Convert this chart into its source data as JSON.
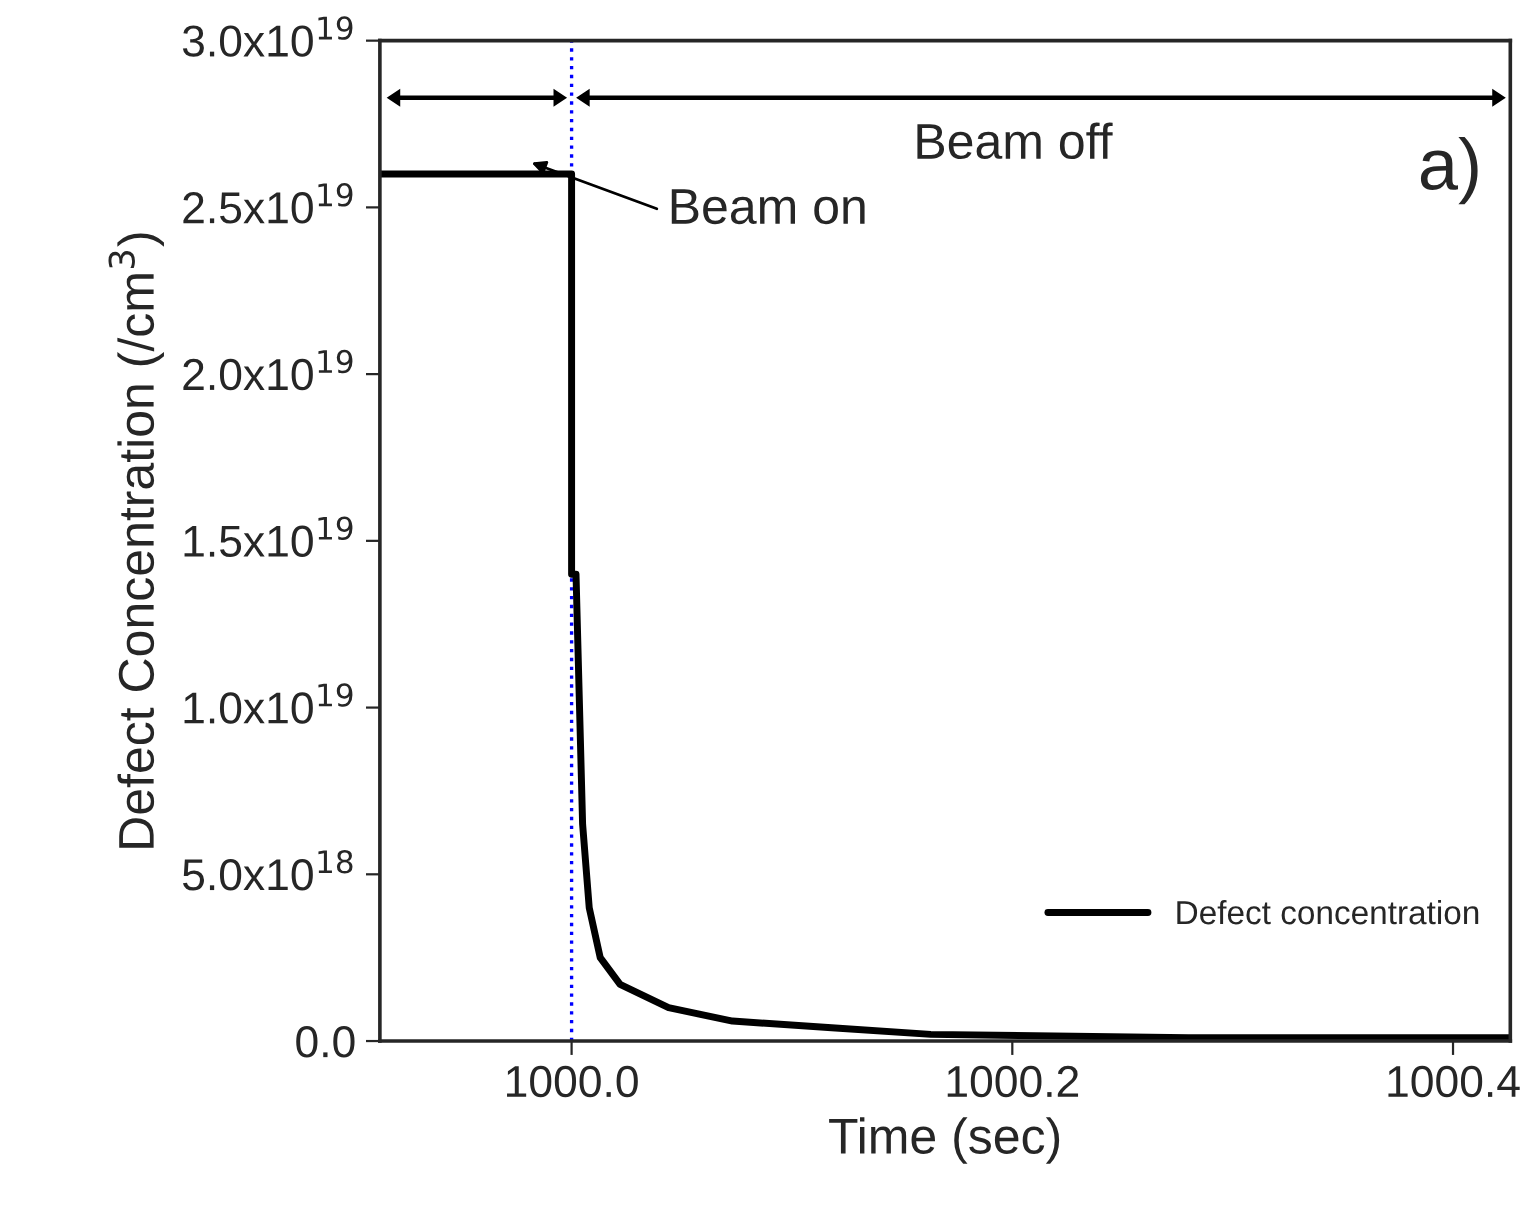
{
  "chart_data": {
    "type": "line",
    "xlabel": "Time (sec)",
    "ylabel": "Defect Concentration (/cm$^{3}$)",
    "x": [
      999.913,
      1000.0,
      1000.0,
      1000.002,
      1000.004,
      1000.005,
      1000.008,
      1000.013,
      1000.022,
      1000.044,
      1000.073,
      1000.118,
      1000.163,
      1000.28,
      1000.426
    ],
    "series": [
      {
        "name": "Defect concentration",
        "color": "#000000",
        "values": [
          2.6e+19,
          2.6e+19,
          1.4e+19,
          1.4e+19,
          9e+18,
          6.5e+18,
          4e+18,
          2.5e+18,
          1.7e+18,
          1e+18,
          6e+17,
          4e+17,
          2e+17,
          1e+17,
          1e+17
        ]
      }
    ],
    "xlim": [
      999.913,
      1000.426
    ],
    "xticks": [
      {
        "value": 1000.0,
        "label": "1000.0"
      },
      {
        "value": 1000.2,
        "label": "1000.2"
      },
      {
        "value": 1000.4,
        "label": "1000.4"
      }
    ],
    "ylim": [
      0,
      3e+19
    ],
    "yticks": [
      {
        "value": 0,
        "label": "0.0"
      },
      {
        "value": 5e+18,
        "label": "5.0x10$^{18}$"
      },
      {
        "value": 1e+19,
        "label": "1.0x10$^{19}$"
      },
      {
        "value": 1.5e+19,
        "label": "1.5x10$^{19}$"
      },
      {
        "value": 2e+19,
        "label": "2.0x10$^{19}$"
      },
      {
        "value": 2.5e+19,
        "label": "2.5x10$^{19}$"
      },
      {
        "value": 3e+19,
        "label": "3.0x10$^{19}$"
      }
    ],
    "ref_lines": [
      {
        "axis": "x",
        "value": 1000.0,
        "color": "#0000ff",
        "line_style": "dotted"
      }
    ],
    "annotations": [
      "Beam on",
      "Beam off",
      "a)"
    ],
    "legend": "bottom right",
    "grid": false,
    "marker": "none",
    "line_style": "solid"
  }
}
